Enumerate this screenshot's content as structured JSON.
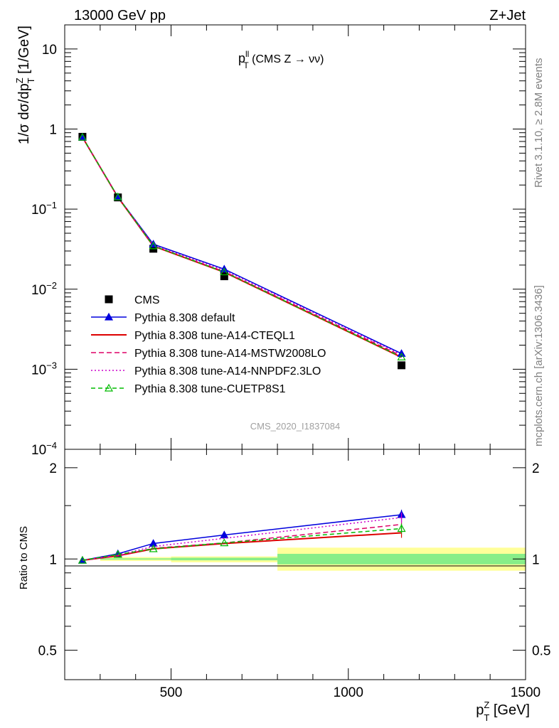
{
  "header": {
    "energy_label": "13000 GeV pp",
    "process_label": "Z+Jet",
    "side_label_1": "Rivet 3.1.10, ≥ 2.8M events",
    "side_label_2": "mcplots.cern.ch [arXiv:1306.3436]",
    "analysis_id": "CMS_2020_I1837084"
  },
  "chart_data": [
    {
      "type": "line",
      "scale": "log",
      "title_main": "p",
      "title_sup": "ll",
      "title_sub": "T",
      "title_rest": " (CMS Z → νν)",
      "ylabel": "1/σ dσ/dp",
      "ylabel_sup": "Z",
      "ylabel_sub": "T",
      "ylabel_unit": " [1/GeV]",
      "xlim": [
        200,
        1500
      ],
      "ylim": [
        0.0001,
        20
      ],
      "yticks": [
        {
          "value": 10,
          "base": "10",
          "exp": ""
        },
        {
          "value": 1,
          "base": "1",
          "exp": ""
        },
        {
          "value": 0.1,
          "base": "10",
          "exp": "−1"
        },
        {
          "value": 0.01,
          "base": "10",
          "exp": "−2"
        },
        {
          "value": 0.001,
          "base": "10",
          "exp": "−3"
        },
        {
          "value": 0.0001,
          "base": "10",
          "exp": "−4"
        }
      ],
      "x": [
        250,
        350,
        450,
        650,
        1150
      ],
      "data": {
        "name": "CMS",
        "values": [
          0.8,
          0.14,
          0.032,
          0.0145,
          0.00112
        ]
      },
      "series": [
        {
          "name": "Pythia 8.308 default",
          "color": "#0000dd",
          "dash": "",
          "marker": "triangle-filled",
          "values": [
            0.79,
            0.142,
            0.0365,
            0.0178,
            0.00157
          ]
        },
        {
          "name": "Pythia 8.308 tune-A14-CTEQL1",
          "color": "#dd0000",
          "dash": "",
          "marker": "none",
          "values": [
            0.79,
            0.141,
            0.0345,
            0.0163,
            0.00141
          ]
        },
        {
          "name": "Pythia 8.308 tune-A14-MSTW2008LO",
          "color": "#dd0066",
          "dash": "7,4",
          "marker": "none",
          "values": [
            0.79,
            0.141,
            0.0348,
            0.0166,
            0.00147
          ]
        },
        {
          "name": "Pythia 8.308 tune-A14-NNPDF2.3LO",
          "color": "#cc00cc",
          "dash": "2,3",
          "marker": "none",
          "values": [
            0.79,
            0.142,
            0.0355,
            0.0172,
            0.00152
          ]
        },
        {
          "name": "Pythia 8.308 tune-CUETP8S1",
          "color": "#00bb00",
          "dash": "6,4",
          "marker": "triangle-open",
          "values": [
            0.79,
            0.142,
            0.0347,
            0.0164,
            0.00142
          ]
        }
      ]
    },
    {
      "type": "line",
      "scale": "log",
      "ylabel": "Ratio to CMS",
      "xlim": [
        200,
        1500
      ],
      "ylim": [
        0.4,
        2.3
      ],
      "yticks": [
        {
          "value": 2,
          "label": "2"
        },
        {
          "value": 1,
          "label": "1"
        },
        {
          "value": 0.5,
          "label": "0.5"
        }
      ],
      "xticks": [
        {
          "value": 500,
          "label": "500"
        },
        {
          "value": 1000,
          "label": "1000"
        },
        {
          "value": 1500,
          "label": "1500"
        }
      ],
      "xlabel": "p",
      "xlabel_sup": "Z",
      "xlabel_sub": "T",
      "xlabel_unit": " [GeV]",
      "bins": [
        [
          300,
          500
        ],
        [
          500,
          800
        ],
        [
          800,
          1500
        ]
      ],
      "band_yellow": [
        [
          0.985,
          1.015
        ],
        [
          0.975,
          1.02
        ],
        [
          0.915,
          1.09
        ]
      ],
      "band_green": [
        [
          0.995,
          1.005
        ],
        [
          0.99,
          1.01
        ],
        [
          0.96,
          1.04
        ]
      ],
      "x": [
        250,
        350,
        450,
        650,
        1150
      ],
      "series_ratio": [
        {
          "name": "Pythia 8.308 default",
          "values": [
            0.99,
            1.04,
            1.125,
            1.2,
            1.4
          ]
        },
        {
          "name": "Pythia 8.308 tune-A14-CTEQL1",
          "values": [
            0.99,
            1.025,
            1.08,
            1.125,
            1.22
          ]
        },
        {
          "name": "Pythia 8.308 tune-A14-MSTW2008LO",
          "values": [
            0.99,
            1.025,
            1.085,
            1.13,
            1.3
          ]
        },
        {
          "name": "Pythia 8.308 tune-A14-NNPDF2.3LO",
          "values": [
            0.99,
            1.03,
            1.1,
            1.17,
            1.37
          ]
        },
        {
          "name": "Pythia 8.308 tune-CUETP8S1",
          "values": [
            0.99,
            1.035,
            1.08,
            1.13,
            1.26
          ]
        }
      ]
    }
  ]
}
